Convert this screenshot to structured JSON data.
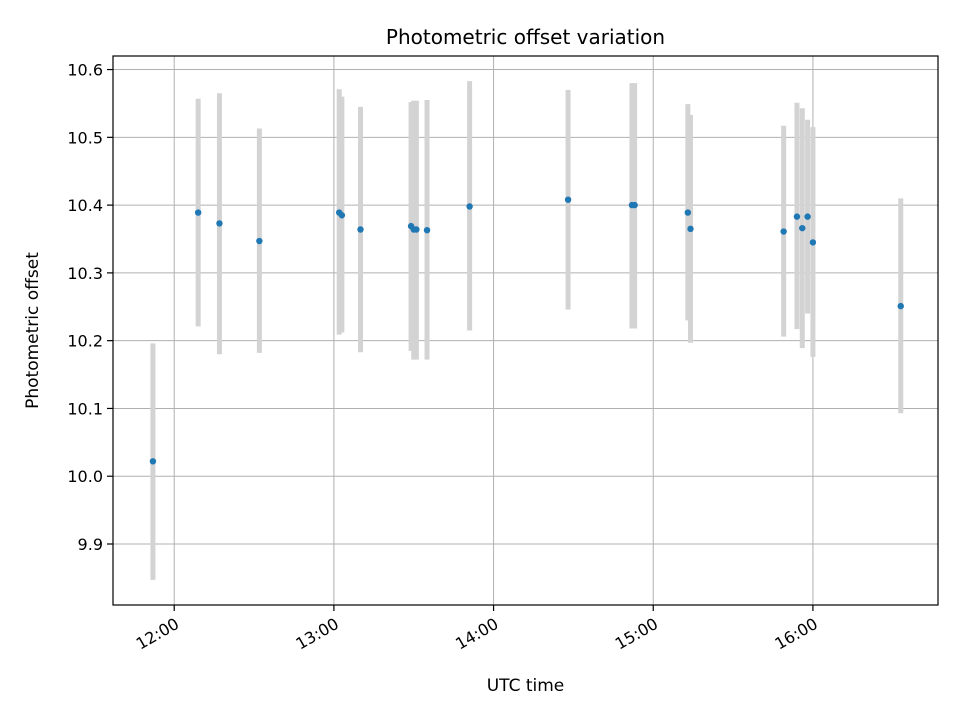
{
  "chart_data": {
    "type": "scatter",
    "title": "Photometric offset variation",
    "xlabel": "UTC time",
    "ylabel": "Photometric offset",
    "grid": true,
    "x_unit": "UTC time (HH:MM)",
    "xlim": [
      "11:37",
      "16:47"
    ],
    "ylim": [
      9.81,
      10.62
    ],
    "xticks": [
      "12:00",
      "13:00",
      "14:00",
      "15:00",
      "16:00"
    ],
    "yticks": [
      "9.9",
      "10.0",
      "10.1",
      "10.2",
      "10.3",
      "10.4",
      "10.5",
      "10.6"
    ],
    "point_color": "#1f77b4",
    "errorbar_color": "#d3d3d3",
    "series": [
      {
        "points": [
          {
            "x": "11:52",
            "y": 10.022,
            "ylow": 9.847,
            "yhigh": 10.196
          },
          {
            "x": "12:09",
            "y": 10.389,
            "ylow": 10.221,
            "yhigh": 10.557
          },
          {
            "x": "12:17",
            "y": 10.373,
            "ylow": 10.18,
            "yhigh": 10.565
          },
          {
            "x": "12:32",
            "y": 10.347,
            "ylow": 10.182,
            "yhigh": 10.513
          },
          {
            "x": "13:02",
            "y": 10.389,
            "ylow": 10.209,
            "yhigh": 10.571
          },
          {
            "x": "13:03",
            "y": 10.385,
            "ylow": 10.212,
            "yhigh": 10.56
          },
          {
            "x": "13:10",
            "y": 10.364,
            "ylow": 10.183,
            "yhigh": 10.545
          },
          {
            "x": "13:29",
            "y": 10.369,
            "ylow": 10.185,
            "yhigh": 10.552
          },
          {
            "x": "13:30",
            "y": 10.364,
            "ylow": 10.172,
            "yhigh": 10.554
          },
          {
            "x": "13:31",
            "y": 10.364,
            "ylow": 10.172,
            "yhigh": 10.554
          },
          {
            "x": "13:35",
            "y": 10.363,
            "ylow": 10.172,
            "yhigh": 10.555
          },
          {
            "x": "13:51",
            "y": 10.398,
            "ylow": 10.215,
            "yhigh": 10.583
          },
          {
            "x": "14:28",
            "y": 10.408,
            "ylow": 10.246,
            "yhigh": 10.57
          },
          {
            "x": "14:52",
            "y": 10.4,
            "ylow": 10.218,
            "yhigh": 10.58
          },
          {
            "x": "14:53",
            "y": 10.4,
            "ylow": 10.218,
            "yhigh": 10.58
          },
          {
            "x": "15:13",
            "y": 10.389,
            "ylow": 10.23,
            "yhigh": 10.549
          },
          {
            "x": "15:14",
            "y": 10.365,
            "ylow": 10.197,
            "yhigh": 10.533
          },
          {
            "x": "15:49",
            "y": 10.361,
            "ylow": 10.206,
            "yhigh": 10.517
          },
          {
            "x": "15:54",
            "y": 10.383,
            "ylow": 10.217,
            "yhigh": 10.551
          },
          {
            "x": "15:56",
            "y": 10.366,
            "ylow": 10.189,
            "yhigh": 10.543
          },
          {
            "x": "15:58",
            "y": 10.383,
            "ylow": 10.24,
            "yhigh": 10.526
          },
          {
            "x": "16:00",
            "y": 10.345,
            "ylow": 10.176,
            "yhigh": 10.515
          },
          {
            "x": "16:33",
            "y": 10.251,
            "ylow": 10.093,
            "yhigh": 10.41
          }
        ]
      }
    ]
  }
}
